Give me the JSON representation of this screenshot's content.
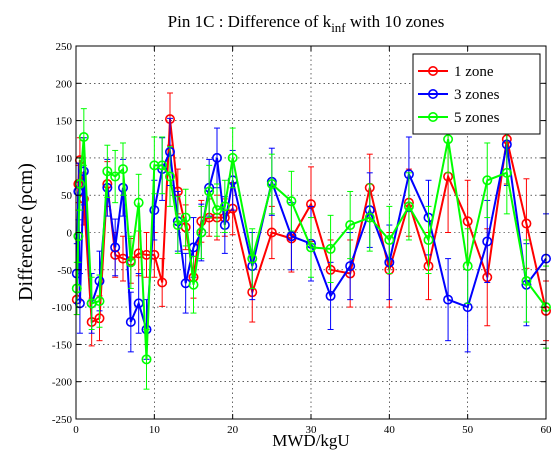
{
  "chart_data": {
    "type": "line",
    "title_main": "Pin 1C : Difference of k",
    "title_sub": "inf",
    "title_tail": " with 10 zones",
    "xlabel": "MWD/kgU",
    "ylabel": "Difference (pcm)",
    "xlim": [
      0,
      60
    ],
    "ylim": [
      -250,
      250
    ],
    "xticks": [
      0,
      10,
      20,
      30,
      40,
      50,
      60
    ],
    "yticks": [
      -250,
      -200,
      -150,
      -100,
      -50,
      0,
      50,
      100,
      150,
      200,
      250
    ],
    "grid": true,
    "legend_position": "top-right",
    "series": [
      {
        "name": "1 zone",
        "color": "#ff0000",
        "x": [
          0.1,
          0.3,
          0.5,
          1,
          2,
          3,
          4,
          5,
          6,
          7,
          8,
          9,
          10,
          11,
          12,
          13,
          14,
          15,
          16,
          17,
          18,
          19,
          20,
          22.5,
          25,
          27.5,
          30,
          32.5,
          35,
          37.5,
          40,
          42.5,
          45,
          47.5,
          50,
          52.5,
          55,
          57.5,
          60
        ],
        "y": [
          -90,
          65,
          97,
          45,
          -120,
          -115,
          65,
          -30,
          -35,
          -38,
          -28,
          -30,
          -30,
          -67,
          152,
          55,
          7,
          -60,
          15,
          20,
          20,
          20,
          32,
          -80,
          0,
          -8,
          38,
          -50,
          -55,
          60,
          -50,
          40,
          -45,
          75,
          15,
          -60,
          125,
          12,
          -105
        ],
        "err": [
          20,
          25,
          30,
          35,
          32,
          30,
          30,
          30,
          30,
          30,
          30,
          30,
          30,
          32,
          35,
          30,
          30,
          28,
          28,
          25,
          30,
          25,
          35,
          40,
          35,
          45,
          50,
          40,
          45,
          45,
          50,
          45,
          45,
          75,
          55,
          65,
          60,
          60,
          40
        ]
      },
      {
        "name": "3 zones",
        "color": "#0000ff",
        "x": [
          0.1,
          0.3,
          0.5,
          1,
          2,
          3,
          4,
          5,
          6,
          7,
          8,
          9,
          10,
          11,
          12,
          13,
          14,
          15,
          16,
          17,
          18,
          19,
          20,
          22.5,
          25,
          27.5,
          30,
          32.5,
          35,
          37.5,
          40,
          42.5,
          45,
          47.5,
          50,
          52.5,
          55,
          57.5,
          60
        ],
        "y": [
          -55,
          55,
          -95,
          82,
          -95,
          -65,
          60,
          -20,
          60,
          -120,
          -95,
          -130,
          30,
          85,
          108,
          15,
          -68,
          -20,
          0,
          60,
          100,
          10,
          70,
          -45,
          68,
          -5,
          -15,
          -85,
          -45,
          30,
          -40,
          78,
          20,
          -90,
          -100,
          -12,
          118,
          -70,
          -35
        ],
        "err": [
          40,
          38,
          40,
          45,
          40,
          40,
          38,
          38,
          38,
          40,
          40,
          40,
          40,
          42,
          45,
          40,
          40,
          40,
          38,
          38,
          40,
          38,
          40,
          45,
          45,
          45,
          50,
          45,
          45,
          50,
          50,
          50,
          50,
          55,
          60,
          55,
          55,
          55,
          60
        ]
      },
      {
        "name": "5 zones",
        "color": "#00ff00",
        "x": [
          0.1,
          0.3,
          0.5,
          1,
          2,
          3,
          4,
          5,
          6,
          7,
          8,
          9,
          10,
          11,
          12,
          13,
          14,
          15,
          16,
          17,
          18,
          19,
          20,
          22.5,
          25,
          27.5,
          30,
          32.5,
          35,
          37.5,
          40,
          42.5,
          45,
          47.5,
          50,
          52.5,
          55,
          57.5,
          60
        ],
        "y": [
          -75,
          -5,
          65,
          128,
          -95,
          -92,
          82,
          75,
          85,
          -40,
          40,
          -170,
          90,
          90,
          75,
          10,
          20,
          -70,
          0,
          55,
          30,
          35,
          100,
          -35,
          65,
          42,
          -20,
          -22,
          10,
          20,
          -10,
          35,
          -10,
          125,
          -45,
          70,
          80,
          -65,
          -100
        ],
        "err": [
          35,
          35,
          35,
          38,
          35,
          35,
          35,
          35,
          35,
          35,
          38,
          40,
          38,
          38,
          40,
          38,
          38,
          38,
          35,
          35,
          35,
          35,
          40,
          40,
          40,
          40,
          40,
          45,
          45,
          45,
          45,
          45,
          45,
          45,
          50,
          50,
          55,
          55,
          55
        ]
      }
    ]
  }
}
